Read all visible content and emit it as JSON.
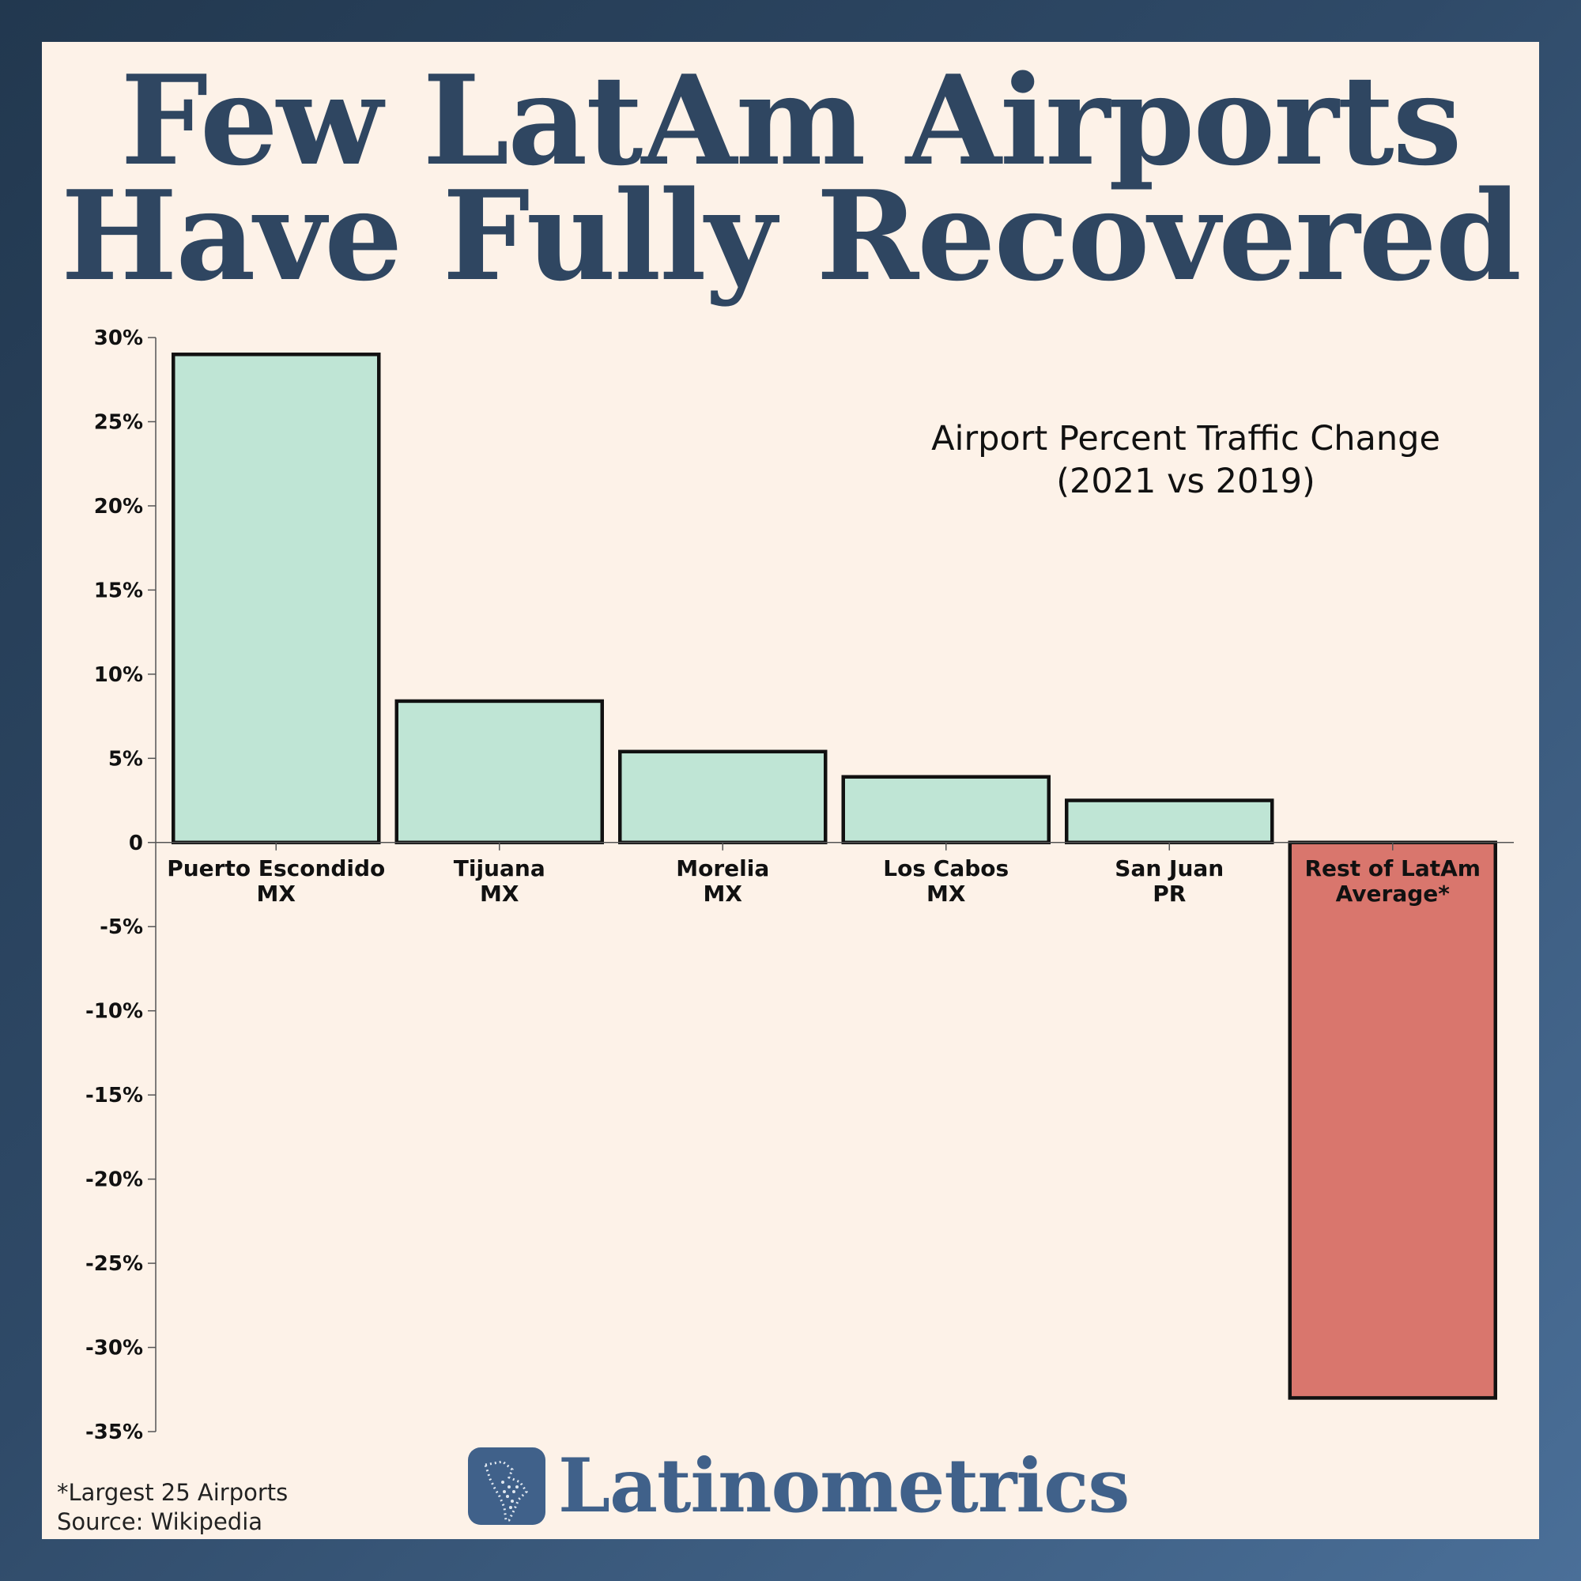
{
  "header": {
    "title_line1": "Few LatAm Airports",
    "title_line2": "Have Fully Recovered"
  },
  "chart_data": {
    "type": "bar",
    "title": "Airport Percent Traffic Change",
    "subtitle": "(2021 vs 2019)",
    "categories": [
      {
        "line1": "Puerto Escondido",
        "line2": "MX"
      },
      {
        "line1": "Tijuana",
        "line2": "MX"
      },
      {
        "line1": "Morelia",
        "line2": "MX"
      },
      {
        "line1": "Los Cabos",
        "line2": "MX"
      },
      {
        "line1": "San Juan",
        "line2": "PR"
      },
      {
        "line1": "Rest of LatAm",
        "line2": "Average*"
      }
    ],
    "values": [
      29,
      8.4,
      5.4,
      3.9,
      2.5,
      -33
    ],
    "ylim": [
      -35,
      30
    ],
    "yticks": [
      30,
      25,
      20,
      15,
      10,
      5,
      0,
      -5,
      -10,
      -15,
      -20,
      -25,
      -30,
      -35
    ],
    "ytick_labels": [
      "30%",
      "25%",
      "20%",
      "15%",
      "10%",
      "5%",
      "0",
      "-5%",
      "-10%",
      "-15%",
      "-20%",
      "-25%",
      "-30%",
      "-35%"
    ],
    "grid": false,
    "colors": {
      "positive": "#bfe5d5",
      "negative": "#d9766d",
      "outline": "#111111"
    }
  },
  "footer": {
    "footnote": "*Largest 25 Airports",
    "source": "Source: Wikipedia",
    "brand": "Latinometrics",
    "brand_icon": "latam-map-icon"
  }
}
